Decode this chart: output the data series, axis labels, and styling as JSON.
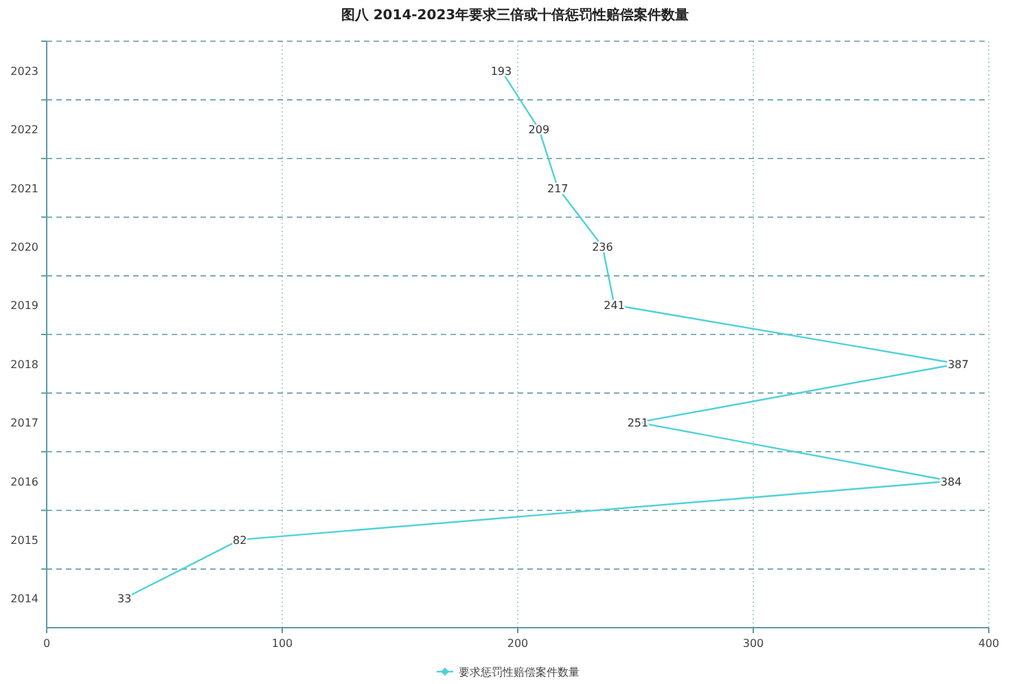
{
  "chart_data": {
    "type": "line",
    "orientation": "horizontal",
    "title": "图八  2014-2023年要求三倍或十倍惩罚性赔偿案件数量",
    "categories": [
      "2023",
      "2022",
      "2021",
      "2020",
      "2019",
      "2018",
      "2017",
      "2016",
      "2015",
      "2014"
    ],
    "series": [
      {
        "name": "要求惩罚性赔偿案件数量",
        "color": "#4fd1d9",
        "values": [
          193,
          209,
          217,
          236,
          241,
          387,
          251,
          384,
          82,
          33
        ]
      }
    ],
    "xlim": [
      0,
      400
    ],
    "xticks": [
      0,
      100,
      200,
      300,
      400
    ],
    "grid": true,
    "legend": "bottom",
    "data_labels": true,
    "marker": "none",
    "line_style": "solid"
  }
}
